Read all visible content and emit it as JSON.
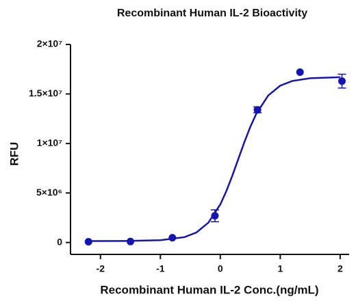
{
  "chart_data": {
    "type": "scatter",
    "title": "Recombinant Human IL-2 Bioactivity",
    "x_label": "Recombinant Human IL-2 Conc.(ng/mL)",
    "y_label": "RFU",
    "xlim": [
      -2.5,
      2.15
    ],
    "ylim": [
      -1200000,
      20000000
    ],
    "xticks": [
      -2,
      -1,
      0,
      1,
      2
    ],
    "yticks": [
      0,
      {
        "value": 5000000,
        "label": "5×10⁶"
      },
      {
        "value": 10000000,
        "label": "1×10⁷"
      },
      {
        "value": 15000000,
        "label": "1.5×10⁷"
      },
      {
        "value": 20000000,
        "label": "2×10⁷"
      }
    ],
    "series": [
      {
        "color": "#1414b4",
        "style": "points",
        "x": [
          -2.2,
          -1.5,
          -0.8,
          -0.09,
          0.62,
          1.33,
          2.03
        ],
        "values": [
          80000,
          100000,
          480000,
          2700000,
          13400000,
          17200000,
          16300000
        ],
        "errors": [
          null,
          null,
          null,
          600000,
          300000,
          null,
          700000
        ]
      },
      {
        "color": "#1414b4",
        "style": "line",
        "x": [
          -2.2,
          -1.6,
          -1.0,
          -0.6,
          -0.4,
          -0.2,
          0,
          0.1,
          0.2,
          0.3,
          0.4,
          0.5,
          0.6,
          0.8,
          1.0,
          1.2,
          1.5,
          2.0
        ],
        "values": [
          150000,
          156000,
          230000,
          540000,
          1010000,
          2000000,
          3850000,
          5180000,
          6740000,
          8430000,
          10110000,
          11670000,
          13000000,
          14850000,
          15840000,
          16310000,
          16590000,
          16690000
        ]
      }
    ]
  }
}
